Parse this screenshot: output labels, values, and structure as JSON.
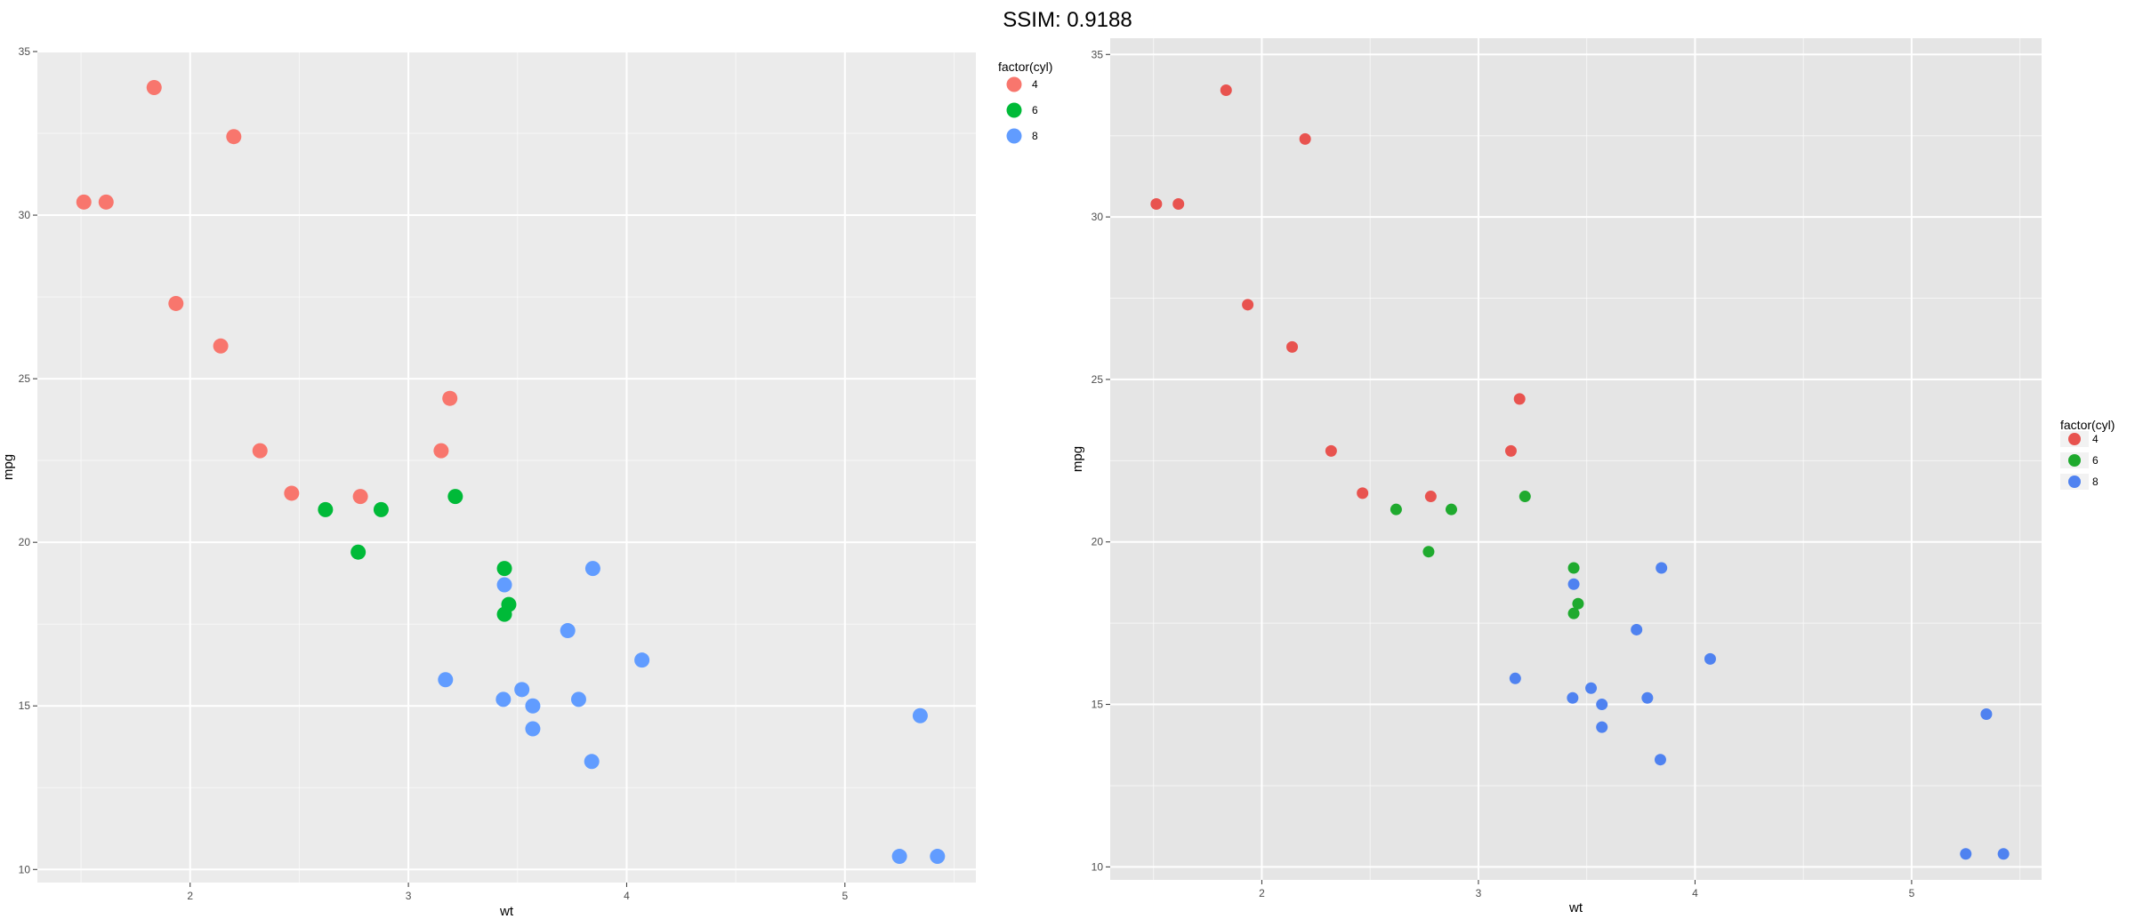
{
  "title": "SSIM: 0.9188",
  "series_colors": {
    "4": "#F8766D",
    "6": "#00BA38",
    "8": "#619CFF"
  },
  "chart_data": [
    {
      "type": "scatter",
      "xlabel": "wt",
      "ylabel": "mpg",
      "xlim": [
        1.3,
        5.6
      ],
      "ylim": [
        9.6,
        35.0
      ],
      "x_ticks": [
        2,
        3,
        4,
        5
      ],
      "y_ticks": [
        10,
        15,
        20,
        25,
        30,
        35
      ],
      "grid": true,
      "panel_background": "#EBEBEB",
      "legend": {
        "title": "factor(cyl)",
        "position": "top-right",
        "labels": [
          "4",
          "6",
          "8"
        ]
      },
      "series": [
        {
          "name": "4",
          "color": "#F8766D",
          "points": [
            [
              2.32,
              22.8
            ],
            [
              3.19,
              24.4
            ],
            [
              3.15,
              22.8
            ],
            [
              2.2,
              32.4
            ],
            [
              1.615,
              30.4
            ],
            [
              1.835,
              33.9
            ],
            [
              2.465,
              21.5
            ],
            [
              1.935,
              27.3
            ],
            [
              2.14,
              26.0
            ],
            [
              1.513,
              30.4
            ],
            [
              2.78,
              21.4
            ]
          ]
        },
        {
          "name": "6",
          "color": "#00BA38",
          "points": [
            [
              2.62,
              21.0
            ],
            [
              2.875,
              21.0
            ],
            [
              3.215,
              21.4
            ],
            [
              3.46,
              18.1
            ],
            [
              3.44,
              19.2
            ],
            [
              3.44,
              17.8
            ],
            [
              2.77,
              19.7
            ]
          ]
        },
        {
          "name": "8",
          "color": "#619CFF",
          "points": [
            [
              3.44,
              18.7
            ],
            [
              3.57,
              14.3
            ],
            [
              4.07,
              16.4
            ],
            [
              3.73,
              17.3
            ],
            [
              3.78,
              15.2
            ],
            [
              5.25,
              10.4
            ],
            [
              5.424,
              10.4
            ],
            [
              5.345,
              14.7
            ],
            [
              3.52,
              15.5
            ],
            [
              3.435,
              15.2
            ],
            [
              3.84,
              13.3
            ],
            [
              3.845,
              19.2
            ],
            [
              3.17,
              15.8
            ],
            [
              3.57,
              15.0
            ]
          ]
        }
      ]
    },
    {
      "type": "scatter",
      "xlabel": "wt",
      "ylabel": "mpg",
      "xlim": [
        1.3,
        5.6
      ],
      "ylim": [
        9.6,
        35.5
      ],
      "x_ticks": [
        2,
        3,
        4,
        5
      ],
      "y_ticks": [
        10,
        15,
        20,
        25,
        30,
        35
      ],
      "grid": true,
      "panel_background": "#E5E5E5",
      "legend": {
        "title": "factor(cyl)",
        "position": "right",
        "labels": [
          "4",
          "6",
          "8"
        ]
      },
      "series": [
        {
          "name": "4",
          "color": "#E8534F",
          "points": [
            [
              2.32,
              22.8
            ],
            [
              3.19,
              24.4
            ],
            [
              3.15,
              22.8
            ],
            [
              2.2,
              32.4
            ],
            [
              1.615,
              30.4
            ],
            [
              1.835,
              33.9
            ],
            [
              2.465,
              21.5
            ],
            [
              1.935,
              27.3
            ],
            [
              2.14,
              26.0
            ],
            [
              1.513,
              30.4
            ],
            [
              2.78,
              21.4
            ]
          ]
        },
        {
          "name": "6",
          "color": "#1FAA2E",
          "points": [
            [
              2.62,
              21.0
            ],
            [
              2.875,
              21.0
            ],
            [
              3.215,
              21.4
            ],
            [
              3.46,
              18.1
            ],
            [
              3.44,
              19.2
            ],
            [
              3.44,
              17.8
            ],
            [
              2.77,
              19.7
            ]
          ]
        },
        {
          "name": "8",
          "color": "#4F82F0",
          "points": [
            [
              3.44,
              18.7
            ],
            [
              3.57,
              14.3
            ],
            [
              4.07,
              16.4
            ],
            [
              3.73,
              17.3
            ],
            [
              3.78,
              15.2
            ],
            [
              5.25,
              10.4
            ],
            [
              5.424,
              10.4
            ],
            [
              5.345,
              14.7
            ],
            [
              3.52,
              15.5
            ],
            [
              3.435,
              15.2
            ],
            [
              3.84,
              13.3
            ],
            [
              3.845,
              19.2
            ],
            [
              3.17,
              15.8
            ],
            [
              3.57,
              15.0
            ]
          ]
        }
      ]
    }
  ]
}
